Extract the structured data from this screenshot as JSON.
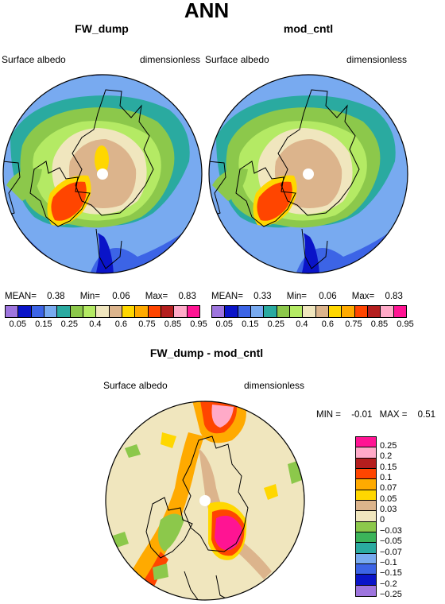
{
  "title": "ANN",
  "panels": [
    {
      "title": "FW_dump",
      "left_label": "Surface albedo",
      "right_label": "dimensionless",
      "stats": {
        "mean_label": "MEAN=",
        "mean": "0.38",
        "min_label": "Min=",
        "min": "0.06",
        "max_label": "Max=",
        "max": "0.83"
      }
    },
    {
      "title": "mod_cntl",
      "left_label": "Surface albedo",
      "right_label": "dimensionless",
      "stats": {
        "mean_label": "MEAN=",
        "mean": "0.33",
        "min_label": "Min=",
        "min": "0.06",
        "max_label": "Max=",
        "max": "0.83"
      }
    }
  ],
  "colorbar": {
    "colors": [
      "#9e75de",
      "#0a14c8",
      "#3c64e6",
      "#78aaf0",
      "#2aaaa0",
      "#8cc84b",
      "#b4ea64",
      "#f0e6be",
      "#dcb48c",
      "#ffd700",
      "#ffaa00",
      "#ff4500",
      "#b41e1e",
      "#ffaac8",
      "#ff1493"
    ],
    "ticks": [
      "0.05",
      "0.15",
      "0.25",
      "0.4",
      "0.6",
      "0.75",
      "0.85",
      "0.95"
    ]
  },
  "diff_panel": {
    "title": "FW_dump - mod_cntl",
    "left_label": "Surface albedo",
    "right_label": "dimensionless",
    "stats": {
      "min_label": "MIN =",
      "min": "-0.01",
      "max_label": "MAX =",
      "max": "0.51"
    },
    "colorbar": {
      "colors": [
        "#ff1493",
        "#ffaac8",
        "#b41e1e",
        "#ff4500",
        "#ffaa00",
        "#ffd700",
        "#dcb48c",
        "#f0e6be",
        "#8cc84b",
        "#3cb45a",
        "#2aaaa0",
        "#78aaf0",
        "#3c64e6",
        "#0a14c8",
        "#9e75de"
      ],
      "ticks": [
        "0.25",
        "0.2",
        "0.15",
        "0.1",
        "0.07",
        "0.05",
        "0.03",
        "0",
        "−0.03",
        "−0.05",
        "−0.07",
        "−0.1",
        "−0.15",
        "−0.2",
        "−0.25"
      ]
    }
  }
}
